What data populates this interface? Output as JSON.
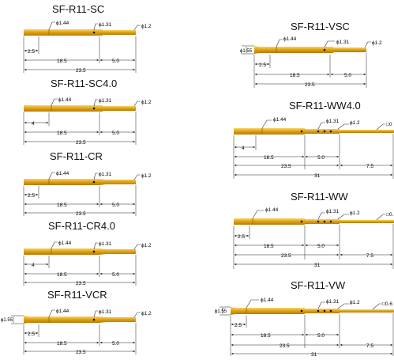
{
  "colors": {
    "gold": "#e1a415",
    "gold_light": "#f6cf5a",
    "gold_dark": "#b87c08",
    "dim": "#222222"
  },
  "pins": {
    "sc": {
      "title": "SF-R11-SC",
      "phi_a": "ϕ1.44",
      "phi_b": "ϕ1.31",
      "phi_c": "ϕ1.2",
      "dim_a": "2.5",
      "dim_b": "18.5",
      "dim_c": "5.0",
      "dim_total": "23.5"
    },
    "sc40": {
      "title": "SF-R11-SC4.0",
      "phi_a": "ϕ1.44",
      "phi_b": "ϕ1.31",
      "phi_c": "ϕ1.2",
      "dim_a": "4",
      "dim_b": "18.5",
      "dim_c": "5.0",
      "dim_total": "23.5"
    },
    "cr": {
      "title": "SF-R11-CR",
      "phi_a": "ϕ1.44",
      "phi_b": "ϕ1.31",
      "phi_c": "ϕ1.2",
      "dim_a": "2.5",
      "dim_b": "18.5",
      "dim_c": "5.0",
      "dim_total": "23.5"
    },
    "cr40": {
      "title": "SF-R11-CR4.0",
      "phi_a": "ϕ1.44",
      "phi_b": "ϕ1.31",
      "phi_c": "ϕ1.2",
      "dim_a": "4",
      "dim_b": "18.5",
      "dim_c": "5.0",
      "dim_total": "23.5"
    },
    "vcr": {
      "title": "SF-R11-VCR",
      "phi_a": "ϕ1.44",
      "phi_b": "ϕ1.31",
      "phi_c": "ϕ1.2",
      "phi_head": "ϕ1.55",
      "dim_a": "2.5",
      "dim_b": "18.5",
      "dim_c": "5.0",
      "dim_total": "23.5"
    },
    "vsc": {
      "title": "SF-R11-VSC",
      "phi_a": "ϕ1.44",
      "phi_b": "ϕ1.31",
      "phi_c": "ϕ1.2",
      "phi_head": "ϕ1.55",
      "dim_a": "2.5",
      "dim_b": "18.5",
      "dim_c": "5.0",
      "dim_total": "23.5"
    },
    "ww40": {
      "title": "SF-R11-WW4.0",
      "phi_a": "ϕ1.44",
      "phi_b": "ϕ1.31",
      "phi_c": "ϕ1.2",
      "phi_d": "□0",
      "dim_a": "4",
      "dim_b": "18.5",
      "dim_c": "5.0",
      "dim_d": "7.5",
      "dim_total": "23.5",
      "dim_overall": "31"
    },
    "ww": {
      "title": "SF-R11-WW",
      "phi_a": "ϕ1.44",
      "phi_b": "ϕ1.31",
      "phi_c": "ϕ1.2",
      "phi_d": "□0.",
      "dim_a": "2.5",
      "dim_b": "18.5",
      "dim_c": "5.0",
      "dim_d": "7.5",
      "dim_total": "23.5",
      "dim_overall": "31"
    },
    "vw": {
      "title": "SF-R11-VW",
      "phi_a": "ϕ1.44",
      "phi_b": "ϕ1.31",
      "phi_c": "ϕ1.2",
      "phi_d": "□0.6",
      "phi_head": "ϕ1.55",
      "dim_a": "2.5",
      "dim_b": "18.5",
      "dim_c": "5.0",
      "dim_d": "7.5",
      "dim_total": "23.5",
      "dim_overall": "31"
    }
  }
}
